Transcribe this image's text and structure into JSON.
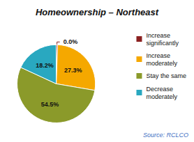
{
  "chart_data": {
    "type": "pie",
    "title": "Homeownership – Northeast",
    "categories": [
      "Increase\nsignificantly",
      "Increase\nmoderately",
      "Stay the same",
      "Decrease\nmoderately"
    ],
    "values": [
      0.0,
      27.3,
      54.5,
      18.2
    ],
    "value_labels": [
      "0.0%",
      "27.3%",
      "54.5%",
      "18.2%"
    ],
    "colors": [
      "#8B2020",
      "#F5A800",
      "#8B9A2A",
      "#29A8C0"
    ],
    "data_labels": true,
    "legend": "right",
    "annotations": [
      {
        "text": "Source: RCLCO",
        "color": "#4472C4"
      }
    ]
  }
}
